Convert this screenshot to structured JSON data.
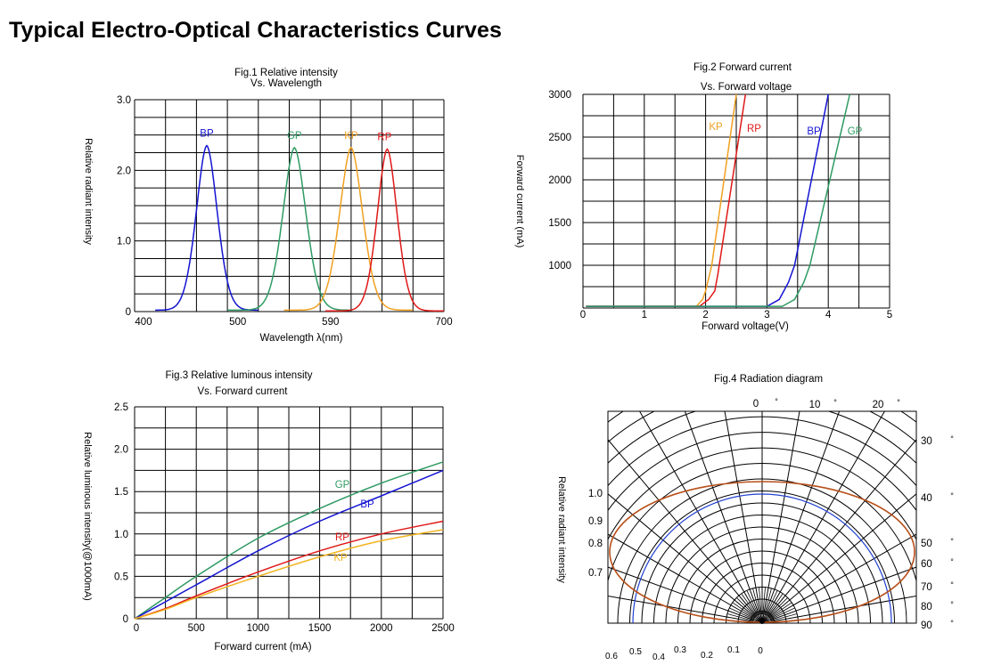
{
  "page_title": "Typical Electro-Optical Characteristics Curves",
  "colors": {
    "BP": "#1414d2",
    "GP": "#2e9a62",
    "KP": "#f0a020",
    "RP": "#e01818",
    "polar_outer": "#b8501a",
    "polar_inner": "#2040d0"
  },
  "chart_data": [
    {
      "type": "line",
      "title": "Fig.1 Relative intensity",
      "subtitle": "Vs. Wavelength",
      "xlabel": "Wavelength λ(nm)",
      "ylabel": "Relative radiant intensity",
      "x_ticks": [
        "400",
        "500",
        "590",
        "700"
      ],
      "x_tick_values": [
        400,
        500,
        590,
        700
      ],
      "y_ticks": [
        "0",
        "1.0",
        "2.0",
        "3.0"
      ],
      "y_tick_values": [
        0,
        1,
        2,
        3
      ],
      "xlim": [
        400,
        700
      ],
      "ylim": [
        0,
        3
      ],
      "grid": true,
      "series": [
        {
          "name": "BP",
          "peak": 470,
          "amp": 2.35,
          "sigma": 10,
          "power": 1.8,
          "floor": 0.02,
          "xrange": [
            420,
            520
          ]
        },
        {
          "name": "GP",
          "peak": 555,
          "amp": 2.32,
          "sigma": 11,
          "power": 1.8,
          "floor": 0.02,
          "xrange": [
            490,
            610
          ]
        },
        {
          "name": "KP",
          "peak": 610,
          "amp": 2.32,
          "sigma": 11,
          "power": 1.8,
          "floor": 0.02,
          "xrange": [
            545,
            670
          ]
        },
        {
          "name": "RP",
          "peak": 645,
          "amp": 2.3,
          "sigma": 9.5,
          "power": 1.8,
          "floor": 0.01,
          "xrange": [
            585,
            700
          ]
        }
      ]
    },
    {
      "type": "line",
      "title": "Fig.2 Forward current",
      "subtitle": "Vs. Forward voltage",
      "xlabel": "Forward voltage(V)",
      "ylabel": "Forward current (mA)",
      "x_ticks": [
        "0",
        "1",
        "2",
        "3",
        "4",
        "5"
      ],
      "x_tick_values": [
        0,
        1,
        2,
        3,
        4,
        5
      ],
      "y_ticks": [
        "1000",
        "1500",
        "2000",
        "2500",
        "3000"
      ],
      "y_tick_values": [
        1000,
        1500,
        2000,
        2500,
        3000
      ],
      "xlim": [
        0,
        5
      ],
      "ylim": [
        500,
        3000
      ],
      "grid": true,
      "series": [
        {
          "name": "KP",
          "x": [
            0.05,
            1.85,
            1.95,
            2.0,
            2.1,
            2.5
          ],
          "y": [
            520,
            520,
            600,
            700,
            1000,
            3000
          ]
        },
        {
          "name": "RP",
          "x": [
            0.05,
            1.9,
            2.05,
            2.15,
            2.2,
            2.65
          ],
          "y": [
            520,
            520,
            600,
            700,
            900,
            3000
          ]
        },
        {
          "name": "BP",
          "x": [
            0.05,
            3.0,
            3.2,
            3.35,
            3.45,
            4.0
          ],
          "y": [
            520,
            520,
            600,
            800,
            1000,
            3000
          ]
        },
        {
          "name": "GP",
          "x": [
            0.05,
            3.25,
            3.45,
            3.6,
            3.7,
            4.35
          ],
          "y": [
            520,
            520,
            600,
            800,
            1000,
            3000
          ]
        }
      ]
    },
    {
      "type": "line",
      "title": "Fig.3 Relative luminous intensity",
      "subtitle": "Vs. Forward current",
      "xlabel": "Forward current (mA)",
      "ylabel": "Relative luminous intensity(@1000mA)",
      "x_ticks": [
        "0",
        "500",
        "1000",
        "1500",
        "2000",
        "2500"
      ],
      "x_tick_values": [
        0,
        500,
        1000,
        1500,
        2000,
        2500
      ],
      "y_ticks": [
        "0",
        "0.5",
        "1.0",
        "1.5",
        "2.0",
        "2.5"
      ],
      "y_tick_values": [
        0,
        0.5,
        1.0,
        1.5,
        2.0,
        2.5
      ],
      "xlim": [
        0,
        2500
      ],
      "ylim": [
        0,
        2.5
      ],
      "grid": true,
      "series": [
        {
          "name": "GP",
          "x": [
            0,
            250,
            500,
            1000,
            1500,
            2000,
            2500
          ],
          "y": [
            0,
            0.25,
            0.5,
            0.95,
            1.3,
            1.6,
            1.85
          ]
        },
        {
          "name": "BP",
          "x": [
            0,
            250,
            500,
            1000,
            1500,
            2000,
            2500
          ],
          "y": [
            0,
            0.2,
            0.4,
            0.8,
            1.15,
            1.45,
            1.75
          ]
        },
        {
          "name": "RP",
          "x": [
            0,
            250,
            500,
            1000,
            1500,
            2000,
            2500
          ],
          "y": [
            0,
            0.12,
            0.27,
            0.55,
            0.8,
            1.0,
            1.15
          ]
        },
        {
          "name": "KP",
          "x": [
            0,
            250,
            500,
            1000,
            1500,
            2000,
            2500
          ],
          "y": [
            0,
            0.11,
            0.25,
            0.5,
            0.73,
            0.92,
            1.05
          ]
        }
      ]
    },
    {
      "type": "polar",
      "title": "Fig.4  Radiation diagram",
      "ylabel": "Relative radiant intensity",
      "angle_labels": [
        {
          "text": "0",
          "deg": 0
        },
        {
          "text": "10",
          "deg": 10
        },
        {
          "text": "20",
          "deg": 20
        },
        {
          "text": "30",
          "deg": 30
        },
        {
          "text": "40",
          "deg": 40
        },
        {
          "text": "50",
          "deg": 50
        },
        {
          "text": "60",
          "deg": 60
        },
        {
          "text": "70",
          "deg": 70
        },
        {
          "text": "80",
          "deg": 80
        },
        {
          "text": "90",
          "deg": 90
        }
      ],
      "degree_mark": "°",
      "radial_labels": [
        "1.0",
        "0.9",
        "0.8",
        "0.7"
      ],
      "bottom_labels": [
        "0.6",
        "0.5",
        "0.4",
        "0.3",
        "0.2",
        "0.1",
        "0"
      ]
    }
  ]
}
